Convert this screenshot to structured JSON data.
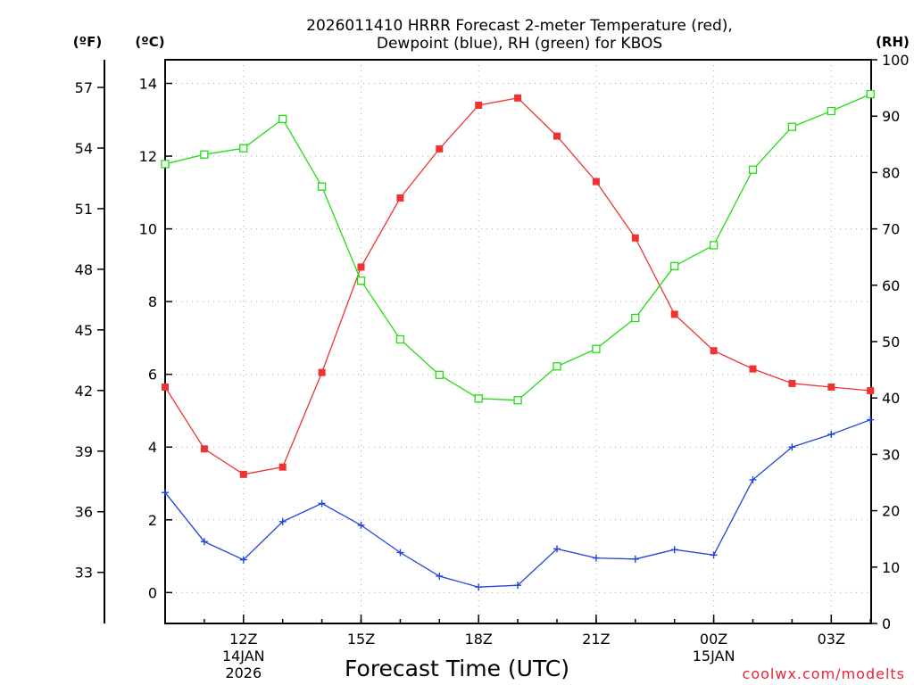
{
  "chart_data": {
    "type": "line",
    "title": [
      "2026011410 HRRR Forecast 2-meter Temperature (red),",
      "Dewpoint (blue), RH (green) for KBOS"
    ],
    "xlabel": "Forecast Time (UTC)",
    "credit": "coolwx.com/modelts",
    "units": {
      "fahrenheit": "(ºF)",
      "celsius": "(ºC)",
      "rh": "(RH)"
    },
    "x_hours": [
      10,
      11,
      12,
      13,
      14,
      15,
      16,
      17,
      18,
      19,
      20,
      21,
      22,
      23,
      24,
      25,
      26,
      27,
      28
    ],
    "x_ticks": [
      {
        "hour": 12,
        "label": "12Z",
        "date": [
          "14JAN",
          "2026"
        ]
      },
      {
        "hour": 15,
        "label": "15Z",
        "date": []
      },
      {
        "hour": 18,
        "label": "18Z",
        "date": []
      },
      {
        "hour": 21,
        "label": "21Z",
        "date": []
      },
      {
        "hour": 24,
        "label": "00Z",
        "date": [
          "15JAN"
        ]
      },
      {
        "hour": 27,
        "label": "03Z",
        "date": []
      }
    ],
    "celsius_axis": {
      "range": [
        -0.85,
        14.65
      ],
      "ticks": [
        0,
        2,
        4,
        6,
        8,
        10,
        12,
        14
      ]
    },
    "fahrenheit_axis": {
      "ticks": [
        33,
        36,
        39,
        42,
        45,
        48,
        51,
        54,
        57
      ]
    },
    "rh_axis": {
      "range": [
        0,
        100
      ],
      "ticks": [
        0,
        10,
        20,
        30,
        40,
        50,
        60,
        70,
        80,
        90,
        100
      ]
    },
    "series": [
      {
        "name": "2-meter Temperature",
        "axis": "celsius",
        "color": "#ee3333",
        "marker": "filled-square",
        "values": [
          5.65,
          3.95,
          3.25,
          3.45,
          6.05,
          8.95,
          10.85,
          12.2,
          13.4,
          13.6,
          12.55,
          11.3,
          9.75,
          7.65,
          6.65,
          6.15,
          5.75,
          5.65,
          5.55
        ]
      },
      {
        "name": "Dewpoint",
        "axis": "celsius",
        "color": "#2244dd",
        "marker": "plus",
        "values": [
          2.75,
          1.4,
          0.9,
          1.95,
          2.45,
          1.85,
          1.1,
          0.45,
          0.15,
          0.2,
          1.2,
          0.95,
          0.92,
          1.18,
          1.03,
          3.1,
          4.0,
          4.35,
          4.75
        ]
      },
      {
        "name": "Relative Humidity",
        "axis": "rh",
        "color": "#22dd11",
        "marker": "open-square",
        "values": [
          81.5,
          83.2,
          84.3,
          89.5,
          77.5,
          60.8,
          50.4,
          44.1,
          39.9,
          39.6,
          45.6,
          48.7,
          54.2,
          63.4,
          67.1,
          80.5,
          88.1,
          90.9,
          93.9
        ]
      }
    ]
  }
}
